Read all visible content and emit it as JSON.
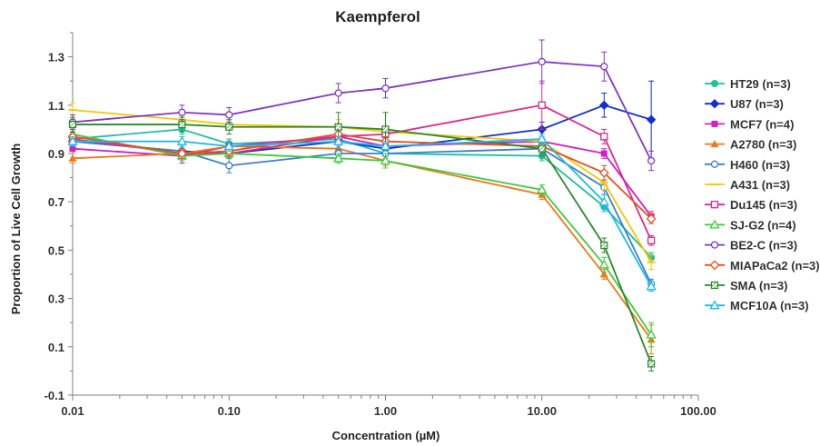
{
  "chart_data": {
    "type": "line",
    "title": "Kaempferol",
    "xlabel": "Concentration (µM)",
    "ylabel": "Proportion of Live Cell Growth",
    "x_scale": "log",
    "xlim": [
      0.01,
      100
    ],
    "ylim": [
      -0.1,
      1.4
    ],
    "x_ticks": [
      0.01,
      0.1,
      1,
      10,
      100
    ],
    "x_tick_labels": [
      "0.01",
      "0.10",
      "1.00",
      "10.00",
      "100.00"
    ],
    "y_ticks": [
      -0.1,
      0.1,
      0.3,
      0.5,
      0.7,
      0.9,
      1.1,
      1.3
    ],
    "y_tick_labels": [
      "-0.1",
      "0.1",
      "0.3",
      "0.5",
      "0.7",
      "0.9",
      "1.1",
      "1.3"
    ],
    "grid": false,
    "legend_position": "right",
    "x": [
      0.01,
      0.05,
      0.1,
      0.5,
      1,
      10,
      25,
      50
    ],
    "series": [
      {
        "name": "HT29 (n=3)",
        "color": "#1fbf9f",
        "marker": "circle-filled",
        "values": [
          0.96,
          1.0,
          0.94,
          0.96,
          0.9,
          0.89,
          0.68,
          0.47
        ],
        "errors": [
          0.02,
          0.02,
          0.02,
          0.03,
          0.02,
          0.02,
          0.02,
          0.02
        ]
      },
      {
        "name": "U87 (n=3)",
        "color": "#1030d0",
        "marker": "diamond-filled",
        "values": [
          0.95,
          0.91,
          0.9,
          0.95,
          0.92,
          1.0,
          1.1,
          1.04
        ],
        "errors": [
          0.02,
          0.02,
          0.02,
          0.03,
          0.03,
          0.03,
          0.05,
          0.16
        ]
      },
      {
        "name": "MCF7 (n=4)",
        "color": "#d020c8",
        "marker": "square-filled",
        "values": [
          0.92,
          0.89,
          0.93,
          0.97,
          0.93,
          0.95,
          0.9,
          0.64
        ],
        "errors": [
          0.02,
          0.03,
          0.02,
          0.03,
          0.03,
          0.02,
          0.02,
          0.02
        ]
      },
      {
        "name": "A2780 (n=3)",
        "color": "#f07818",
        "marker": "triangle-filled",
        "values": [
          0.88,
          0.9,
          0.93,
          0.92,
          0.87,
          0.73,
          0.4,
          0.13
        ],
        "errors": [
          0.02,
          0.02,
          0.02,
          0.02,
          0.02,
          0.02,
          0.02,
          0.06
        ]
      },
      {
        "name": "H460 (n=3)",
        "color": "#3c7fd0",
        "marker": "circle-open",
        "values": [
          0.95,
          0.91,
          0.85,
          0.9,
          0.9,
          0.92,
          0.76,
          0.36
        ],
        "errors": [
          0.02,
          0.02,
          0.03,
          0.02,
          0.03,
          0.02,
          0.03,
          0.02
        ]
      },
      {
        "name": "A431 (n=3)",
        "color": "#f4c800",
        "marker": "line",
        "values": [
          1.08,
          1.04,
          1.02,
          1.01,
          0.99,
          0.95,
          0.78,
          0.45
        ],
        "errors": [
          0.03,
          0.02,
          0.02,
          0.03,
          0.02,
          0.02,
          0.03,
          0.03
        ]
      },
      {
        "name": "Du145 (n=3)",
        "color": "#e0288c",
        "marker": "square-open",
        "values": [
          0.96,
          0.9,
          0.9,
          0.97,
          0.98,
          1.1,
          0.97,
          0.54
        ],
        "errors": [
          0.02,
          0.02,
          0.02,
          0.03,
          0.02,
          0.1,
          0.03,
          0.02
        ]
      },
      {
        "name": "SJ-G2 (n=4)",
        "color": "#3ccc3c",
        "marker": "triangle-open",
        "values": [
          0.98,
          0.89,
          0.9,
          0.88,
          0.87,
          0.75,
          0.44,
          0.15
        ],
        "errors": [
          0.02,
          0.02,
          0.02,
          0.02,
          0.03,
          0.02,
          0.03,
          0.05
        ]
      },
      {
        "name": "BE2-C (n=3)",
        "color": "#8038c8",
        "marker": "circle-open",
        "values": [
          1.03,
          1.07,
          1.06,
          1.15,
          1.17,
          1.28,
          1.26,
          0.87
        ],
        "errors": [
          0.03,
          0.03,
          0.03,
          0.04,
          0.04,
          0.09,
          0.06,
          0.04
        ]
      },
      {
        "name": "MIAPaCa2 (n=3)",
        "color": "#e85020",
        "marker": "diamond-open",
        "values": [
          0.97,
          0.9,
          0.91,
          0.98,
          0.95,
          0.93,
          0.82,
          0.63
        ],
        "errors": [
          0.02,
          0.02,
          0.02,
          0.02,
          0.02,
          0.02,
          0.03,
          0.02
        ]
      },
      {
        "name": "SMA (n=3)",
        "color": "#2a8a2a",
        "marker": "hatched-square",
        "values": [
          1.02,
          1.02,
          1.01,
          1.01,
          1.0,
          0.92,
          0.52,
          0.03
        ],
        "errors": [
          0.03,
          0.03,
          0.03,
          0.06,
          0.07,
          0.03,
          0.03,
          0.03
        ]
      },
      {
        "name": "MCF10A (n=3)",
        "color": "#20b8e8",
        "marker": "triangle-open",
        "values": [
          0.95,
          0.95,
          0.93,
          0.95,
          0.93,
          0.96,
          0.7,
          0.35
        ],
        "errors": [
          0.02,
          0.02,
          0.02,
          0.02,
          0.02,
          0.02,
          0.03,
          0.02
        ]
      }
    ]
  }
}
